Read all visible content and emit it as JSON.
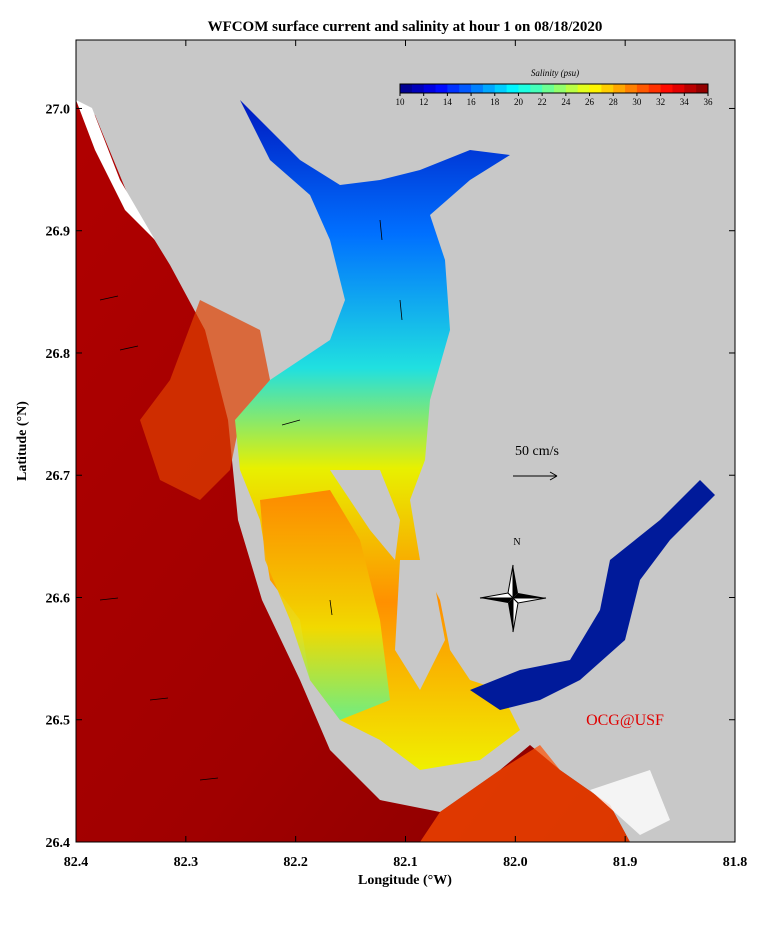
{
  "title": "WFCOM surface current and salinity at hour 1 on 08/18/2020",
  "x_axis": {
    "label": "Longitude (°W)",
    "lim": [
      82.4,
      81.8
    ],
    "ticks": [
      82.4,
      82.3,
      82.2,
      82.1,
      {
        "value": 82,
        "label": "82.0"
      },
      81.9,
      81.8
    ]
  },
  "y_axis": {
    "label": "Latitude (°N)",
    "lim": [
      26.4,
      27.056
    ],
    "ticks": [
      26.4,
      26.5,
      26.6,
      26.7,
      26.8,
      26.9,
      {
        "value": 27,
        "label": "27.0"
      }
    ]
  },
  "colorbar": {
    "label": "Salinity (psu)",
    "lim": [
      10,
      36
    ],
    "ticks": [
      10,
      12,
      14,
      16,
      18,
      20,
      22,
      24,
      26,
      28,
      30,
      32,
      34,
      36
    ]
  },
  "scale_arrow": "50 cm/s",
  "compass": "N",
  "credit": "OCG@USF"
}
